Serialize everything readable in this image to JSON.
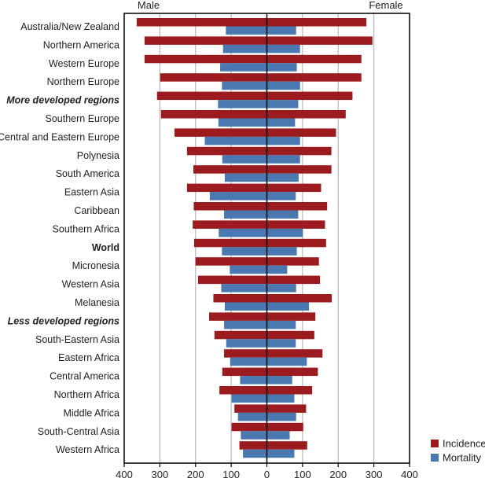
{
  "chart_data": {
    "type": "bar",
    "orientation": "horizontal-butterfly",
    "title": "",
    "side_labels": {
      "left": "Male",
      "right": "Female"
    },
    "xlabel": "",
    "ylabel": "",
    "xlim": [
      -400,
      400
    ],
    "x_ticks": [
      -400,
      -300,
      -200,
      -100,
      0,
      100,
      200,
      300,
      400
    ],
    "x_tick_labels": [
      "400",
      "300",
      "200",
      "100",
      "0",
      "100",
      "200",
      "300",
      "400"
    ],
    "grid": "vertical",
    "legend": {
      "placement": "bottom-right",
      "entries": [
        {
          "name": "Incidence",
          "color": "#9b1b1e"
        },
        {
          "name": "Mortality",
          "color": "#4a78b0"
        }
      ]
    },
    "categories": [
      {
        "label": "Australia/New Zealand",
        "style": "normal"
      },
      {
        "label": "Northern America",
        "style": "normal"
      },
      {
        "label": "Western Europe",
        "style": "normal"
      },
      {
        "label": "Northern Europe",
        "style": "normal"
      },
      {
        "label": "More developed regions",
        "style": "bold-italic"
      },
      {
        "label": "Southern Europe",
        "style": "normal"
      },
      {
        "label": "Central and Eastern Europe",
        "style": "normal"
      },
      {
        "label": "Polynesia",
        "style": "normal"
      },
      {
        "label": "South America",
        "style": "normal"
      },
      {
        "label": "Eastern Asia",
        "style": "normal"
      },
      {
        "label": "Caribbean",
        "style": "normal"
      },
      {
        "label": "Southern Africa",
        "style": "normal"
      },
      {
        "label": "World",
        "style": "bold"
      },
      {
        "label": "Micronesia",
        "style": "normal"
      },
      {
        "label": "Western Asia",
        "style": "normal"
      },
      {
        "label": "Melanesia",
        "style": "normal"
      },
      {
        "label": "Less developed regions",
        "style": "bold-italic"
      },
      {
        "label": "South-Eastern Asia",
        "style": "normal"
      },
      {
        "label": "Eastern Africa",
        "style": "normal"
      },
      {
        "label": "Central America",
        "style": "normal"
      },
      {
        "label": "Northern Africa",
        "style": "normal"
      },
      {
        "label": "Middle Africa",
        "style": "normal"
      },
      {
        "label": "South-Central Asia",
        "style": "normal"
      },
      {
        "label": "Western Africa",
        "style": "normal"
      }
    ],
    "series": [
      {
        "name": "Incidence (Male)",
        "side": "left",
        "color": "#9b1b1e",
        "values": [
          365,
          343,
          343,
          299,
          308,
          297,
          259,
          224,
          206,
          224,
          205,
          208,
          204,
          200,
          193,
          150,
          162,
          147,
          120,
          125,
          133,
          91,
          99,
          77
        ]
      },
      {
        "name": "Incidence (Female)",
        "side": "right",
        "color": "#9b1b1e",
        "values": [
          279,
          296,
          265,
          265,
          240,
          221,
          194,
          181,
          181,
          152,
          169,
          163,
          166,
          146,
          149,
          182,
          136,
          133,
          156,
          143,
          127,
          110,
          102,
          113
        ]
      },
      {
        "name": "Mortality (Male)",
        "side": "left",
        "color": "#4a78b0",
        "values": [
          115,
          123,
          131,
          126,
          137,
          136,
          174,
          125,
          118,
          160,
          120,
          135,
          126,
          104,
          128,
          118,
          120,
          114,
          103,
          75,
          99,
          81,
          73,
          67
        ]
      },
      {
        "name": "Mortality (Female)",
        "side": "right",
        "color": "#4a78b0",
        "values": [
          82,
          93,
          84,
          93,
          88,
          79,
          93,
          93,
          89,
          81,
          88,
          101,
          84,
          57,
          82,
          118,
          81,
          81,
          112,
          71,
          77,
          82,
          64,
          77
        ]
      }
    ]
  }
}
